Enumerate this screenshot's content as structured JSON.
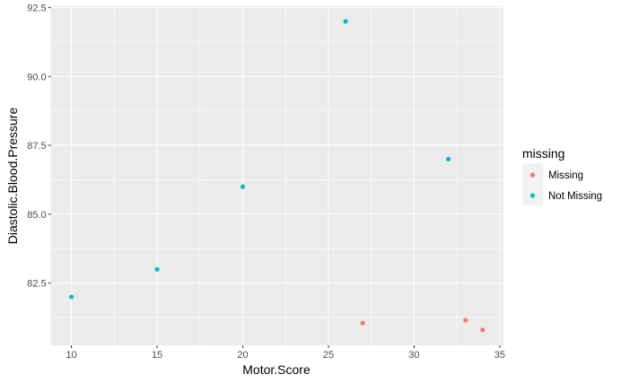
{
  "chart_data": {
    "type": "scatter",
    "xlabel": "Motor.Score",
    "ylabel": "Diastolic.Blood.Pressure",
    "xlim": [
      8.8,
      35.2
    ],
    "ylim": [
      80.24,
      92.56
    ],
    "xticks": [
      10,
      15,
      20,
      25,
      30,
      35
    ],
    "xtick_labels": [
      "10",
      "15",
      "20",
      "25",
      "30",
      "35"
    ],
    "yticks": [
      82.5,
      85,
      87.5,
      90,
      92.5
    ],
    "ytick_labels": [
      "82.5",
      "85.0",
      "87.5",
      "90.0",
      "92.5"
    ],
    "grid": true,
    "legend": {
      "title": "missing",
      "position": "right"
    },
    "series": [
      {
        "name": "Missing",
        "color": "#F8766D",
        "points": [
          [
            27,
            81.05
          ],
          [
            33,
            81.15
          ],
          [
            34,
            80.8
          ]
        ]
      },
      {
        "name": "Not Missing",
        "color": "#00BFC4",
        "points": [
          [
            10,
            82
          ],
          [
            15,
            83
          ],
          [
            20,
            86
          ],
          [
            26,
            92
          ],
          [
            32,
            87
          ]
        ]
      }
    ],
    "panel_background": "#EBEBEB"
  }
}
